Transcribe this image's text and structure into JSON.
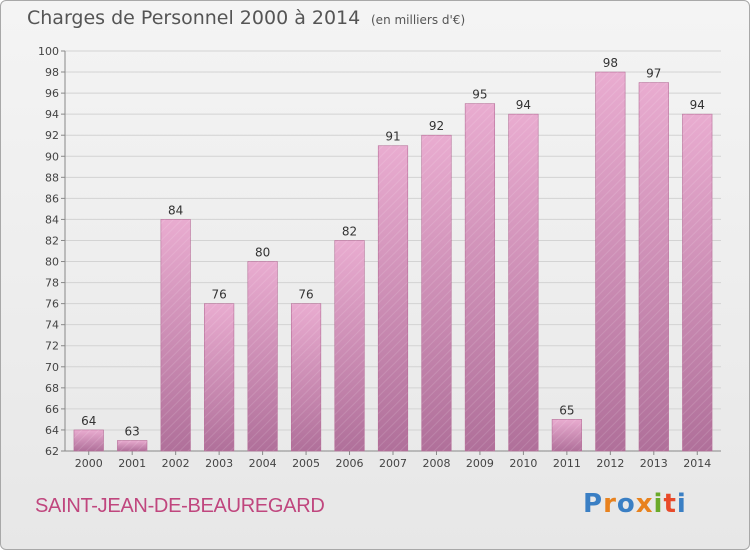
{
  "header": {
    "title": "Charges de Personnel 2000 à 2014",
    "subtitle": "(en milliers d'€)"
  },
  "footer": {
    "commune": "SAINT-JEAN-DE-BEAUREGARD",
    "logo": "Proxiti",
    "logo_colors": [
      "#3a7fc4",
      "#e8821e",
      "#3a7fc4",
      "#e8821e",
      "#6aaa2a",
      "#e84a2a",
      "#3a7fc4"
    ]
  },
  "chart_data": {
    "type": "bar",
    "categories": [
      "2000",
      "2001",
      "2002",
      "2003",
      "2004",
      "2005",
      "2006",
      "2007",
      "2008",
      "2009",
      "2010",
      "2011",
      "2012",
      "2013",
      "2014"
    ],
    "values": [
      64,
      63,
      84,
      76,
      80,
      76,
      82,
      91,
      92,
      95,
      94,
      65,
      98,
      97,
      94
    ],
    "title": "Charges de Personnel 2000 à 2014",
    "subtitle": "(en milliers d'€)",
    "ylim": [
      62,
      100
    ],
    "yticks": [
      62,
      64,
      66,
      68,
      70,
      72,
      74,
      76,
      78,
      80,
      82,
      84,
      86,
      88,
      90,
      92,
      94,
      96,
      98,
      100
    ],
    "grid": true,
    "bar_color": "#d88fb8"
  }
}
